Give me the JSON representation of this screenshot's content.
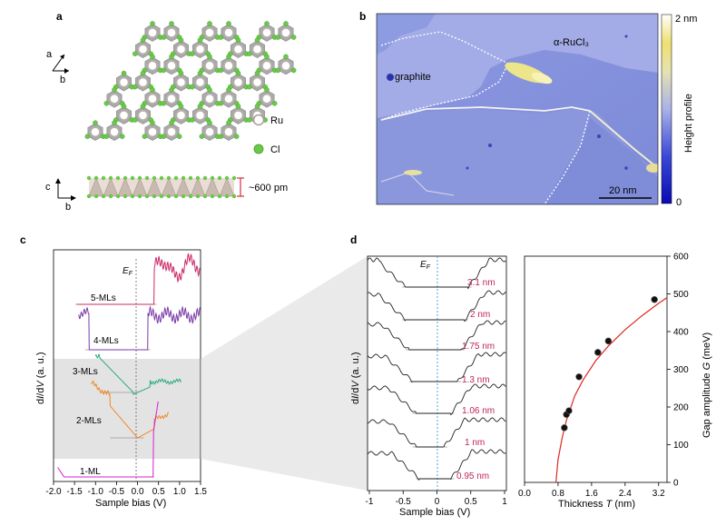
{
  "panels": {
    "a": {
      "label": "a",
      "legend": [
        {
          "symbol": "Ru",
          "label": "Ru"
        },
        {
          "symbol": "Cl",
          "label": "Cl"
        }
      ],
      "axes_top": {
        "a": "a",
        "b": "b"
      },
      "axes_side": {
        "c": "c",
        "b": "b"
      },
      "thickness": "~600 pm",
      "colors": {
        "ru": "#b9b2ac",
        "cl": "#6ac84a",
        "octa": "#a9a9a9"
      }
    },
    "b": {
      "label": "b",
      "region_labels": {
        "graphite": "graphite",
        "rucl3": "α-RuCl₃"
      },
      "colorbar": {
        "max_label": "2 nm",
        "min_label": "0",
        "title": "Height  profile",
        "range_nm": [
          0,
          2
        ]
      },
      "scalebar": "20 nm"
    },
    "c": {
      "label": "c",
      "ylabel_prefix": "d",
      "ylabel_I": "I",
      "ylabel_mid": "/d",
      "ylabel_V": "V",
      "ylabel_suffix": " (a. u.)",
      "xlabel": "Sample bias (V)",
      "ef": "E",
      "ef_sub": "F",
      "xticks": [
        "-2.0",
        "-1.5",
        "-1.0",
        "-0.5",
        "0.0",
        "0.5",
        "1.0",
        "1.5"
      ],
      "curves": [
        {
          "label": "5-MLs",
          "color": "#cc2a68"
        },
        {
          "label": "4-MLs",
          "color": "#7a3aa8"
        },
        {
          "label": "3-MLs",
          "color": "#2bab7c"
        },
        {
          "label": "2-MLs",
          "color": "#f08a2a"
        },
        {
          "label": "1-ML",
          "color": "#d81fd0"
        }
      ]
    },
    "d": {
      "label": "d",
      "left": {
        "ylabel_prefix": "d",
        "ylabel_I": "I",
        "ylabel_mid": "/d",
        "ylabel_V": "V",
        "ylabel_suffix": " (a. u.)",
        "xlabel": "Sample bias (V)",
        "ef": "E",
        "ef_sub": "F",
        "xticks": [
          "-1",
          "-0.5",
          "0",
          "0.5",
          "1"
        ],
        "thickness_labels": [
          "3.1 nm",
          "2 nm",
          "1.75 nm",
          "1.3 nm",
          "1.06 nm",
          "1 nm",
          "0.95 nm"
        ]
      },
      "right": {
        "xlabel_prefix": "Thickness ",
        "xlabel_var": "T",
        "xlabel_unit": " (nm)",
        "ylabel_prefix": "Gap amplitude ",
        "ylabel_var": "G",
        "ylabel_unit": " (meV)",
        "xticks": [
          "0.0",
          "0.8",
          "1.6",
          "2.4",
          "3.2"
        ],
        "yticks": [
          "0",
          "100",
          "200",
          "300",
          "400",
          "500",
          "600"
        ]
      }
    }
  },
  "chart_data": [
    {
      "type": "scatter",
      "xlabel": "Thickness T (nm)",
      "ylabel": "Gap amplitude G (meV)",
      "xlim": [
        0,
        3.4
      ],
      "ylim": [
        0,
        600
      ],
      "points": [
        {
          "x": 0.95,
          "y": 145
        },
        {
          "x": 1.0,
          "y": 180
        },
        {
          "x": 1.06,
          "y": 190
        },
        {
          "x": 1.3,
          "y": 280
        },
        {
          "x": 1.75,
          "y": 345
        },
        {
          "x": 2.0,
          "y": 375
        },
        {
          "x": 3.1,
          "y": 485
        }
      ],
      "fit": {
        "x": [
          0.75,
          0.8,
          0.9,
          1.0,
          1.2,
          1.4,
          1.7,
          2.0,
          2.4,
          2.8,
          3.2,
          3.4
        ],
        "y": [
          0,
          60,
          120,
          165,
          230,
          272,
          323,
          362,
          405,
          442,
          475,
          490
        ],
        "color": "#e0261e"
      }
    }
  ]
}
